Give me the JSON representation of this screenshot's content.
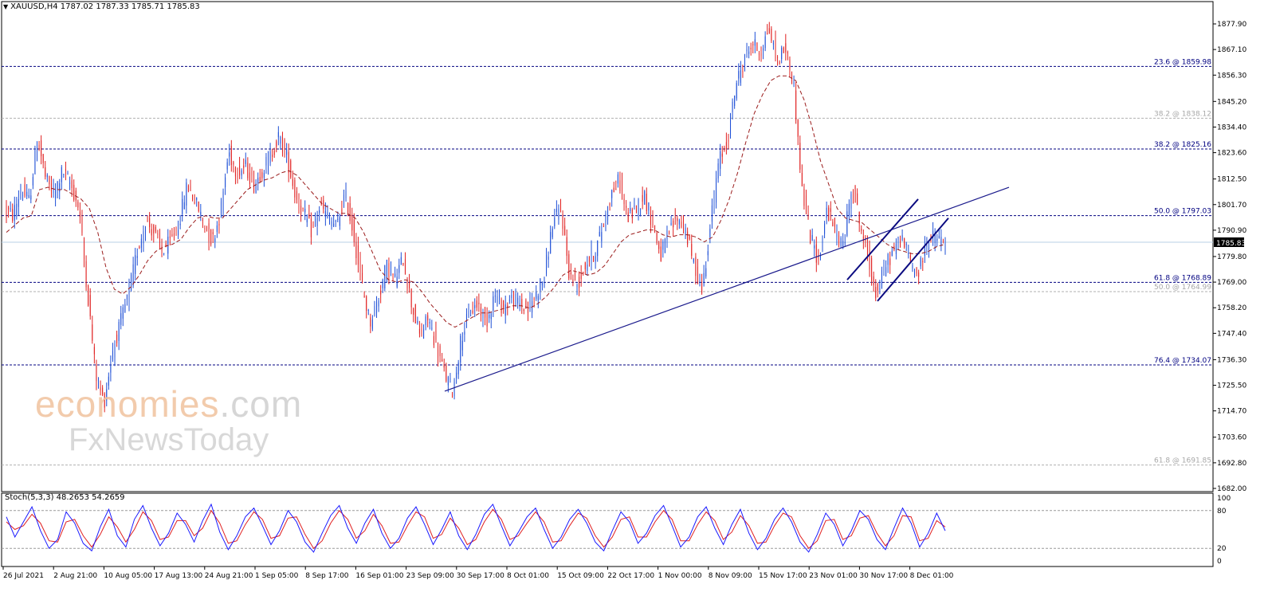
{
  "header": {
    "symbol": "XAUUSD,H4",
    "ohlc": "1787.02 1787.33 1785.71 1785.83"
  },
  "stoch": {
    "label": "Stoch(5,3,3) 48.2653 54.2659"
  },
  "watermark": {
    "line1_main": "economies",
    "line1_suffix": ".com",
    "line2": "FxNewsToday"
  },
  "colors": {
    "up_candle": "#1e4fd6",
    "down_candle": "#e02020",
    "ma_line": "#9b1c1c",
    "fib_line": "#000080",
    "fib_alt_line": "#b0b0b0",
    "trendline": "#1a1a8c",
    "channel": "#0a0a80",
    "stoch_main": "#1a1aff",
    "stoch_signal": "#e02020",
    "price_tag_bg": "#000000"
  },
  "chart_data": [
    {
      "type": "candlestick",
      "title": "XAUUSD,H4",
      "ylim": [
        1682.0,
        1884.0
      ],
      "y_ticks": [
        "1877.90",
        "1867.10",
        "1856.30",
        "1845.20",
        "1834.40",
        "1823.60",
        "1812.50",
        "1801.70",
        "1790.90",
        "1779.80",
        "1769.00",
        "1758.20",
        "1747.40",
        "1736.30",
        "1725.50",
        "1714.70",
        "1703.60",
        "1692.80",
        "1682.00"
      ],
      "x_ticks": [
        "26 Jul 2021",
        "2 Aug 21:00",
        "10 Aug 05:00",
        "17 Aug 13:00",
        "24 Aug 21:00",
        "1 Sep 05:00",
        "8 Sep 17:00",
        "16 Sep 01:00",
        "23 Sep 09:00",
        "30 Sep 17:00",
        "8 Oct 01:00",
        "15 Oct 09:00",
        "22 Oct 17:00",
        "1 Nov 00:00",
        "8 Nov 09:00",
        "15 Nov 17:00",
        "23 Nov 01:00",
        "30 Nov 17:00",
        "8 Dec 01:00"
      ],
      "current_price": "1785.83",
      "series_path": [
        1800,
        1797,
        1808,
        1803,
        1830,
        1812,
        1806,
        1816,
        1810,
        1800,
        1765,
        1730,
        1718,
        1740,
        1752,
        1765,
        1782,
        1795,
        1790,
        1782,
        1786,
        1794,
        1810,
        1803,
        1794,
        1786,
        1798,
        1824,
        1815,
        1818,
        1810,
        1816,
        1822,
        1830,
        1822,
        1806,
        1798,
        1790,
        1801,
        1796,
        1792,
        1806,
        1790,
        1768,
        1752,
        1762,
        1776,
        1770,
        1779,
        1760,
        1746,
        1754,
        1742,
        1730,
        1723,
        1746,
        1756,
        1760,
        1752,
        1764,
        1758,
        1762,
        1760,
        1757,
        1764,
        1772,
        1794,
        1800,
        1772,
        1768,
        1777,
        1781,
        1792,
        1806,
        1812,
        1796,
        1800,
        1806,
        1794,
        1780,
        1790,
        1796,
        1791,
        1776,
        1766,
        1794,
        1820,
        1828,
        1852,
        1862,
        1870,
        1866,
        1876,
        1862,
        1868,
        1852,
        1808,
        1788,
        1778,
        1800,
        1790,
        1784,
        1811,
        1793,
        1778,
        1763,
        1776,
        1782,
        1788,
        1778,
        1772,
        1786,
        1788,
        1785.83
      ],
      "ma_path": [
        1790,
        1793,
        1796,
        1797,
        1808,
        1809,
        1808,
        1808,
        1806,
        1804,
        1800,
        1790,
        1775,
        1766,
        1764,
        1767,
        1772,
        1778,
        1782,
        1784,
        1785,
        1787,
        1792,
        1796,
        1797,
        1796,
        1796,
        1800,
        1804,
        1808,
        1810,
        1812,
        1813,
        1815,
        1816,
        1814,
        1810,
        1806,
        1802,
        1800,
        1798,
        1798,
        1796,
        1790,
        1782,
        1774,
        1770,
        1769,
        1770,
        1769,
        1765,
        1760,
        1756,
        1752,
        1750,
        1752,
        1754,
        1756,
        1756,
        1757,
        1758,
        1759,
        1759,
        1758,
        1760,
        1763,
        1767,
        1772,
        1774,
        1773,
        1772,
        1773,
        1776,
        1781,
        1786,
        1789,
        1790,
        1791,
        1791,
        1789,
        1788,
        1789,
        1789,
        1788,
        1786,
        1788,
        1795,
        1804,
        1815,
        1828,
        1840,
        1848,
        1854,
        1856,
        1856,
        1854,
        1846,
        1834,
        1820,
        1810,
        1800,
        1796,
        1795,
        1794,
        1791,
        1788,
        1785,
        1783,
        1782,
        1781,
        1781,
        1782,
        1784,
        1785
      ],
      "fib_levels": [
        {
          "label": "23.6 @ 1859.98",
          "value": 1859.98,
          "style": "primary"
        },
        {
          "label": "38.2 @ 1838.12",
          "value": 1838.12,
          "style": "secondary"
        },
        {
          "label": "38.2 @ 1825.16",
          "value": 1825.16,
          "style": "primary"
        },
        {
          "label": "50.0 @ 1797.03",
          "value": 1797.03,
          "style": "primary"
        },
        {
          "label": "61.8 @ 1768.89",
          "value": 1768.89,
          "style": "primary"
        },
        {
          "label": "50.0 @ 1764.99",
          "value": 1764.99,
          "style": "secondary"
        },
        {
          "label": "76.4 @ 1734.07",
          "value": 1734.07,
          "style": "primary"
        },
        {
          "label": "61.8 @ 1691.85",
          "value": 1691.85,
          "style": "secondary"
        }
      ]
    },
    {
      "type": "line",
      "title": "Stoch(5,3,3) 48.2653 54.2659",
      "ylim": [
        0,
        100
      ],
      "y_ticks": [
        "100",
        "80",
        "20",
        "0"
      ],
      "levels": [
        80,
        20
      ],
      "main_values": [
        70,
        38,
        62,
        86,
        48,
        20,
        34,
        78,
        60,
        28,
        16,
        54,
        82,
        40,
        22,
        66,
        88,
        52,
        24,
        44,
        76,
        58,
        30,
        64,
        90,
        46,
        18,
        40,
        70,
        84,
        56,
        26,
        48,
        80,
        62,
        30,
        14,
        44,
        72,
        88,
        52,
        28,
        60,
        82,
        44,
        20,
        36,
        68,
        86,
        58,
        26,
        50,
        78,
        40,
        18,
        42,
        74,
        90,
        56,
        24,
        46,
        70,
        84,
        50,
        20,
        38,
        66,
        82,
        60,
        30,
        16,
        48,
        78,
        62,
        28,
        44,
        72,
        88,
        56,
        22,
        38,
        70,
        86,
        52,
        26,
        58,
        82,
        44,
        18,
        36,
        66,
        84,
        62,
        30,
        14,
        42,
        76,
        58,
        24,
        48,
        80,
        66,
        34,
        18,
        52,
        84,
        60,
        22,
        44,
        76,
        48
      ],
      "signal_values": [
        62,
        50,
        56,
        74,
        60,
        32,
        30,
        62,
        66,
        40,
        22,
        42,
        70,
        54,
        30,
        50,
        78,
        64,
        34,
        38,
        64,
        64,
        40,
        52,
        80,
        60,
        28,
        32,
        58,
        78,
        66,
        36,
        40,
        68,
        70,
        42,
        20,
        32,
        60,
        80,
        66,
        36,
        48,
        74,
        56,
        28,
        30,
        56,
        78,
        70,
        36,
        42,
        68,
        52,
        26,
        34,
        62,
        82,
        66,
        34,
        40,
        60,
        78,
        62,
        30,
        32,
        56,
        76,
        68,
        40,
        22,
        38,
        66,
        70,
        38,
        38,
        62,
        80,
        66,
        32,
        32,
        58,
        78,
        64,
        34,
        46,
        72,
        56,
        28,
        30,
        56,
        76,
        70,
        40,
        20,
        32,
        64,
        66,
        34,
        40,
        68,
        72,
        44,
        24,
        40,
        72,
        70,
        32,
        36,
        64,
        54
      ]
    }
  ]
}
